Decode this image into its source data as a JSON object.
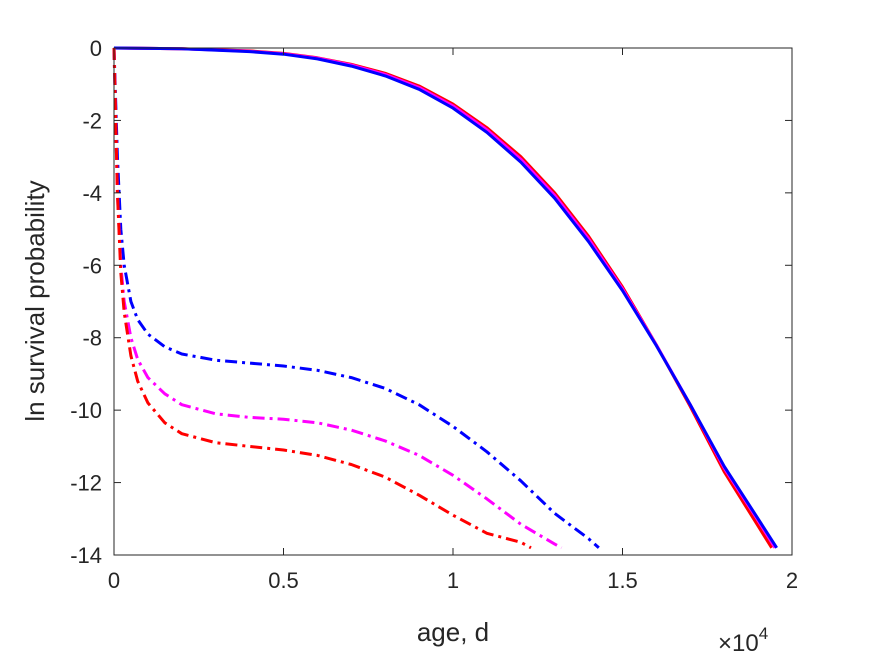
{
  "chart_data": {
    "type": "line",
    "title": "",
    "xlabel": "age, d",
    "ylabel": "ln survival probability",
    "x_exponent_label": {
      "base": "×10",
      "exp": "4"
    },
    "x_scale": 10000,
    "xlim": [
      0,
      20000
    ],
    "ylim": [
      -14,
      0
    ],
    "x_ticks": [
      0,
      5000,
      10000,
      15000,
      20000
    ],
    "x_tick_labels": [
      "0",
      "0.5",
      "1",
      "1.5",
      "2"
    ],
    "y_ticks": [
      0,
      -2,
      -4,
      -6,
      -8,
      -10,
      -12,
      -14
    ],
    "y_tick_labels": [
      "0",
      "-2",
      "-4",
      "-6",
      "-8",
      "-10",
      "-12",
      "-14"
    ],
    "grid": false,
    "legend": false,
    "series": [
      {
        "color": "#ff0000",
        "style": "solid",
        "x": [
          0,
          2000,
          4000,
          5000,
          6000,
          7000,
          8000,
          9000,
          10000,
          11000,
          12000,
          13000,
          14000,
          15000,
          16000,
          17000,
          18000,
          19000,
          19400
        ],
        "y": [
          0,
          -0.02,
          -0.08,
          -0.15,
          -0.27,
          -0.45,
          -0.7,
          -1.05,
          -1.55,
          -2.2,
          -3.0,
          -4.0,
          -5.2,
          -6.6,
          -8.2,
          -9.9,
          -11.7,
          -13.2,
          -13.8
        ]
      },
      {
        "color": "#ff00ff",
        "style": "solid",
        "x": [
          0,
          2000,
          4000,
          5000,
          6000,
          7000,
          8000,
          9000,
          10000,
          11000,
          12000,
          13000,
          14000,
          15000,
          16000,
          17000,
          18000,
          19000,
          19500
        ],
        "y": [
          0,
          -0.02,
          -0.09,
          -0.16,
          -0.28,
          -0.47,
          -0.73,
          -1.09,
          -1.6,
          -2.26,
          -3.07,
          -4.07,
          -5.27,
          -6.65,
          -8.2,
          -9.85,
          -11.6,
          -13.05,
          -13.8
        ]
      },
      {
        "color": "#0000ff",
        "style": "solid",
        "x": [
          0,
          2000,
          4000,
          5000,
          6000,
          7000,
          8000,
          9000,
          10000,
          11000,
          12000,
          13000,
          14000,
          15000,
          16000,
          17000,
          18000,
          19000,
          19550
        ],
        "y": [
          0,
          -0.02,
          -0.1,
          -0.17,
          -0.3,
          -0.5,
          -0.77,
          -1.14,
          -1.66,
          -2.33,
          -3.15,
          -4.15,
          -5.35,
          -6.7,
          -8.22,
          -9.85,
          -11.55,
          -13.0,
          -13.8
        ]
      },
      {
        "color": "#0000ff",
        "style": "dashdot",
        "x": [
          0,
          100,
          200,
          300,
          500,
          700,
          1000,
          1500,
          2000,
          3000,
          4000,
          5000,
          6000,
          7000,
          8000,
          9000,
          10000,
          11000,
          12000,
          13000,
          14000,
          14300
        ],
        "y": [
          0,
          -3.0,
          -5.0,
          -6.0,
          -7.0,
          -7.5,
          -7.9,
          -8.25,
          -8.45,
          -8.62,
          -8.7,
          -8.78,
          -8.9,
          -9.1,
          -9.4,
          -9.85,
          -10.45,
          -11.15,
          -11.95,
          -12.85,
          -13.55,
          -13.8
        ]
      },
      {
        "color": "#ff00ff",
        "style": "dashdot",
        "x": [
          0,
          100,
          200,
          300,
          500,
          700,
          1000,
          1500,
          2000,
          3000,
          4000,
          5000,
          6000,
          7000,
          8000,
          9000,
          10000,
          11000,
          12000,
          13000,
          13200
        ],
        "y": [
          0,
          -4.0,
          -6.0,
          -7.0,
          -8.0,
          -8.6,
          -9.1,
          -9.55,
          -9.85,
          -10.1,
          -10.2,
          -10.25,
          -10.35,
          -10.55,
          -10.85,
          -11.25,
          -11.8,
          -12.45,
          -13.15,
          -13.7,
          -13.8
        ]
      },
      {
        "color": "#ff0000",
        "style": "dashdot",
        "x": [
          0,
          100,
          200,
          300,
          500,
          700,
          1000,
          1500,
          2000,
          3000,
          4000,
          5000,
          6000,
          7000,
          8000,
          9000,
          10000,
          11000,
          12000,
          12300
        ],
        "y": [
          0,
          -4.0,
          -6.2,
          -7.3,
          -8.5,
          -9.2,
          -9.8,
          -10.35,
          -10.65,
          -10.9,
          -11.0,
          -11.1,
          -11.25,
          -11.5,
          -11.85,
          -12.35,
          -12.9,
          -13.4,
          -13.65,
          -13.8
        ]
      }
    ]
  }
}
